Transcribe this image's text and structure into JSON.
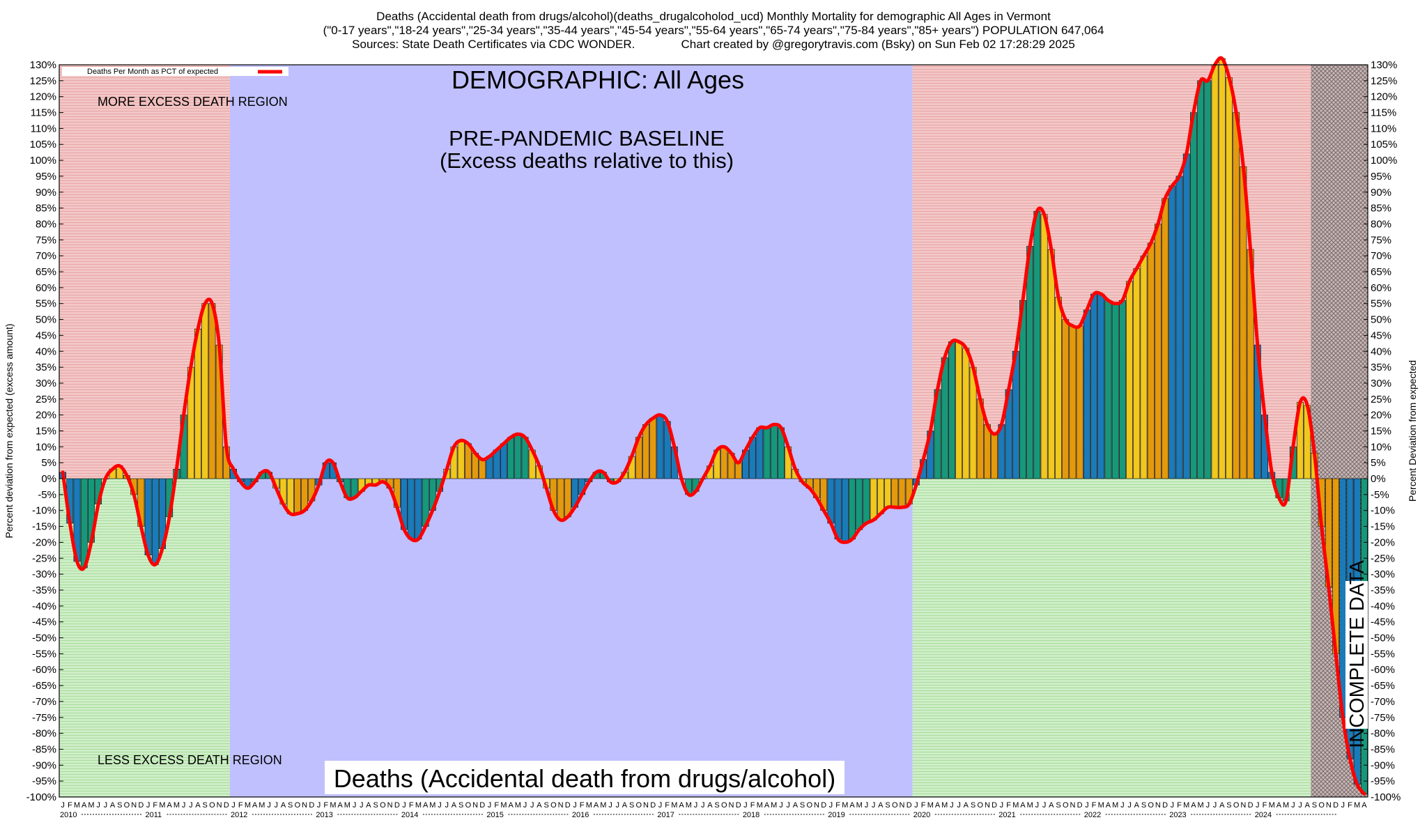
{
  "title_lines": [
    "Deaths (Accidental death from drugs/alcohol)(deaths_drugalcoholod_ucd) Monthly Mortality for demographic All Ages in Vermont",
    "(\"0-17 years\",\"18-24 years\",\"25-34 years\",\"35-44 years\",\"45-54 years\",\"55-64 years\",\"65-74 years\",\"75-84 years\",\"85+ years\") POPULATION 647,064",
    "Sources: State Death Certificates via CDC WONDER.              Chart created by @gregorytravis.com (Bsky) on Sun Feb 02 17:28:29 2025"
  ],
  "chart_data": {
    "type": "bar",
    "title": "DEMOGRAPHIC: All Ages",
    "subtitle_lines": [
      "PRE-PANDEMIC BASELINE",
      "(Excess deaths relative to this)"
    ],
    "bottom_label": "Deaths (Accidental death from drugs/alcohol)",
    "ylabel_left": "Percent deviation from expected (excess amount)",
    "ylabel_right": "Percent Deviation from expected",
    "ylim": [
      -100,
      130
    ],
    "ytick_step": 5,
    "legend": {
      "label": "Deaths Per Month as PCT of expected",
      "color": "#ff0000",
      "placement": "top-left"
    },
    "region_labels": {
      "upper": "MORE EXCESS DEATH REGION",
      "lower": "LESS EXCESS DEATH REGION"
    },
    "incomplete_label": "INCOMPLETE DATA",
    "years": [
      "2010",
      "2011",
      "2012",
      "2013",
      "2014",
      "2015",
      "2016",
      "2017",
      "2018",
      "2019",
      "2020",
      "2021",
      "2022",
      "2023",
      "2024"
    ],
    "month_letters": [
      "J",
      "F",
      "M",
      "A",
      "M",
      "J",
      "J",
      "A",
      "S",
      "O",
      "N",
      "D"
    ],
    "baseline_period": [
      "2012-01",
      "2019-12"
    ],
    "incomplete_from": "2024-09",
    "x_start": "2010-01",
    "values": [
      2,
      -14,
      -26,
      -28,
      -20,
      -8,
      0,
      3,
      4,
      1,
      -5,
      -15,
      -24,
      -27,
      -22,
      -12,
      3,
      20,
      35,
      47,
      55,
      55,
      42,
      10,
      3,
      -1,
      -3,
      -1,
      2,
      2,
      -3,
      -8,
      -11,
      -11,
      -10,
      -7,
      -2,
      5,
      5,
      -1,
      -6,
      -6,
      -4,
      -2,
      -2,
      -1,
      -3,
      -9,
      -16,
      -19,
      -19,
      -15,
      -10,
      -4,
      3,
      10,
      12,
      11,
      8,
      6,
      7,
      9,
      11,
      13,
      14,
      13,
      9,
      4,
      -3,
      -10,
      -13,
      -12,
      -9,
      -5,
      -1,
      2,
      2,
      -1,
      -1,
      2,
      7,
      13,
      17,
      19,
      20,
      18,
      10,
      0,
      -5,
      -4,
      0,
      4,
      9,
      10,
      8,
      5,
      9,
      13,
      16,
      16,
      17,
      16,
      10,
      3,
      -1,
      -3,
      -6,
      -10,
      -14,
      -19,
      -20,
      -19,
      -16,
      -14,
      -13,
      -11,
      -9,
      -9,
      -9,
      -8,
      -2,
      6,
      15,
      28,
      38,
      43,
      43,
      41,
      35,
      25,
      17,
      14,
      17,
      28,
      40,
      56,
      73,
      84,
      83,
      72,
      57,
      50,
      48,
      48,
      53,
      58,
      58,
      56,
      55,
      56,
      62,
      66,
      70,
      74,
      80,
      88,
      92,
      95,
      102,
      115,
      125,
      125,
      130,
      132,
      126,
      115,
      98,
      72,
      42,
      20,
      2,
      -6,
      -7,
      10,
      24,
      23,
      8,
      -15,
      -34,
      -55,
      -75,
      -88,
      -96,
      -99
    ],
    "bar_colors": [
      "#1a7bb8",
      "#16987a",
      "#f0c81e",
      "#e39a0c"
    ],
    "line_color": "#ff0000",
    "colors": {
      "excess_region": "#f3c6c6",
      "deficit_region": "#cfeec8",
      "baseline_region": "#c0c0ff",
      "incomplete_region": "#7a6a6a"
    }
  }
}
